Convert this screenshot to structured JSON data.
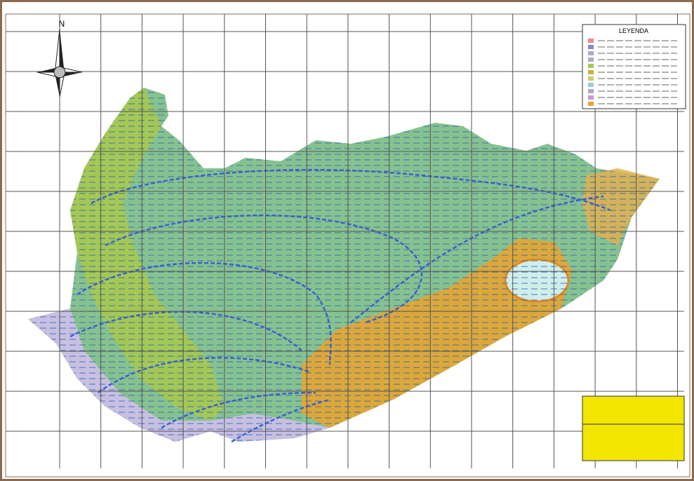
{
  "north_label": "N",
  "legend": {
    "title": "LEYENDA"
  }
}
